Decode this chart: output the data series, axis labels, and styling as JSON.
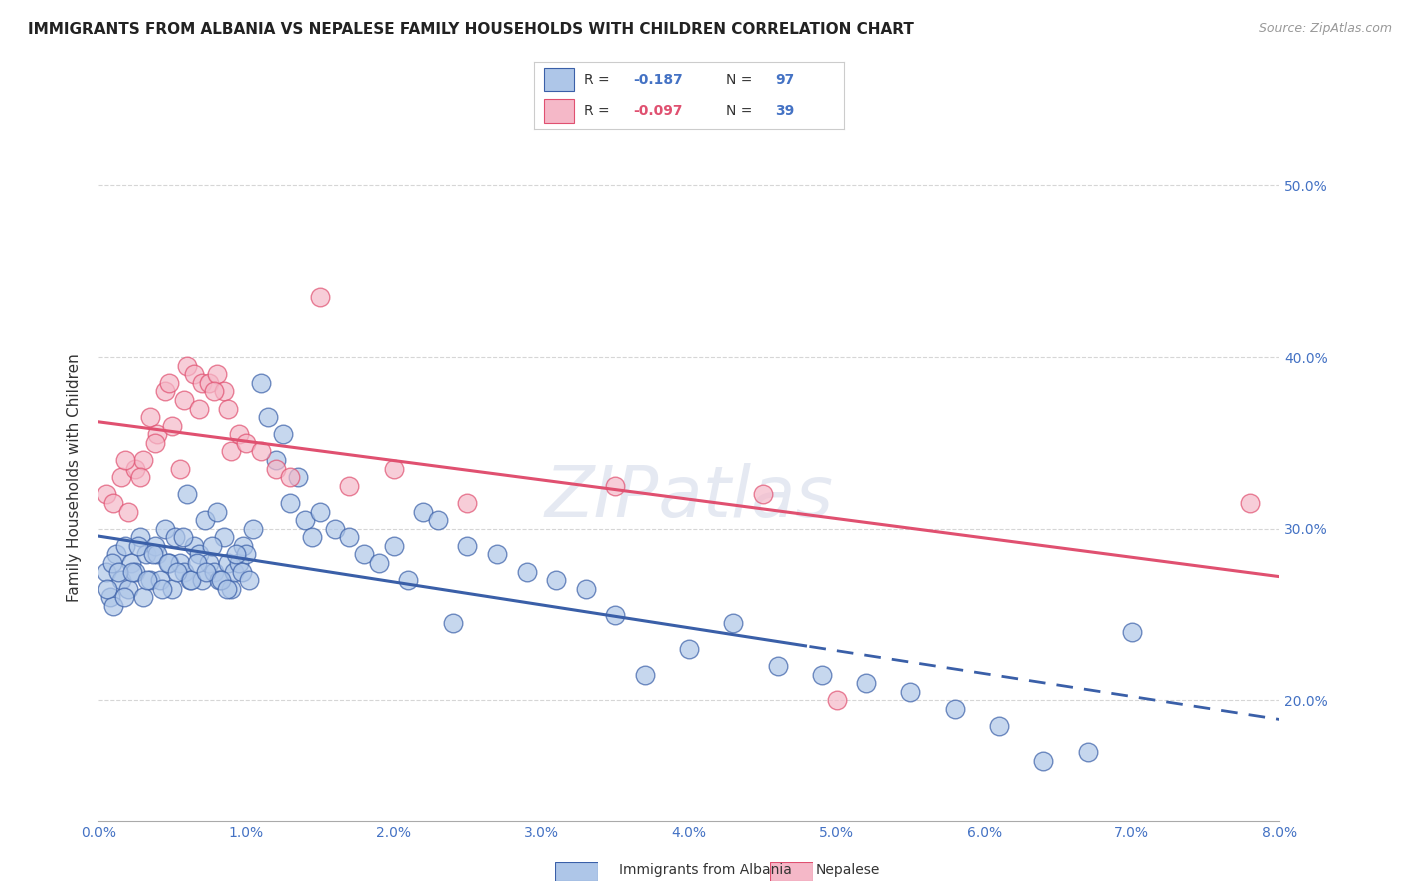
{
  "title": "IMMIGRANTS FROM ALBANIA VS NEPALESE FAMILY HOUSEHOLDS WITH CHILDREN CORRELATION CHART",
  "source": "Source: ZipAtlas.com",
  "ylabel": "Family Households with Children",
  "legend_label1": "Immigrants from Albania",
  "legend_label2": "Nepalese",
  "r1": -0.187,
  "n1": 97,
  "r2": -0.097,
  "n2": 39,
  "color1": "#aec6e8",
  "color2": "#f5b8c8",
  "trendline1_color": "#3a5fa8",
  "trendline2_color": "#e05070",
  "x_tick_labels": [
    "0.0%",
    "1.0%",
    "2.0%",
    "3.0%",
    "4.0%",
    "5.0%",
    "6.0%",
    "7.0%",
    "8.0%"
  ],
  "y_tick_labels": [
    "20.0%",
    "30.0%",
    "40.0%",
    "50.0%"
  ],
  "xlim": [
    0.0,
    8.0
  ],
  "ylim": [
    13.0,
    53.0
  ],
  "background_color": "#ffffff",
  "grid_color": "#cccccc",
  "trendline1_solid_end": 4.8,
  "scatter1_x": [
    0.05,
    0.08,
    0.1,
    0.12,
    0.15,
    0.18,
    0.2,
    0.22,
    0.25,
    0.28,
    0.3,
    0.32,
    0.35,
    0.38,
    0.4,
    0.42,
    0.45,
    0.48,
    0.5,
    0.52,
    0.55,
    0.58,
    0.6,
    0.62,
    0.65,
    0.68,
    0.7,
    0.72,
    0.75,
    0.78,
    0.8,
    0.82,
    0.85,
    0.88,
    0.9,
    0.92,
    0.95,
    0.98,
    1.0,
    1.05,
    1.1,
    1.15,
    1.2,
    1.25,
    1.3,
    1.35,
    1.4,
    1.45,
    1.5,
    1.6,
    1.7,
    1.8,
    1.9,
    2.0,
    2.1,
    2.2,
    2.3,
    2.4,
    2.5,
    2.7,
    2.9,
    3.1,
    3.3,
    3.5,
    3.7,
    4.0,
    4.3,
    4.6,
    4.9,
    5.2,
    5.5,
    5.8,
    6.1,
    6.4,
    6.7,
    7.0,
    0.06,
    0.09,
    0.13,
    0.17,
    0.23,
    0.27,
    0.33,
    0.37,
    0.43,
    0.47,
    0.53,
    0.57,
    0.63,
    0.67,
    0.73,
    0.77,
    0.83,
    0.87,
    0.93,
    0.97,
    1.02
  ],
  "scatter1_y": [
    27.5,
    26.0,
    25.5,
    28.5,
    27.0,
    29.0,
    26.5,
    28.0,
    27.5,
    29.5,
    26.0,
    28.5,
    27.0,
    29.0,
    28.5,
    27.0,
    30.0,
    28.0,
    26.5,
    29.5,
    28.0,
    27.5,
    32.0,
    27.0,
    29.0,
    28.5,
    27.0,
    30.5,
    28.0,
    27.5,
    31.0,
    27.0,
    29.5,
    28.0,
    26.5,
    27.5,
    28.0,
    29.0,
    28.5,
    30.0,
    38.5,
    36.5,
    34.0,
    35.5,
    31.5,
    33.0,
    30.5,
    29.5,
    31.0,
    30.0,
    29.5,
    28.5,
    28.0,
    29.0,
    27.0,
    31.0,
    30.5,
    24.5,
    29.0,
    28.5,
    27.5,
    27.0,
    26.5,
    25.0,
    21.5,
    23.0,
    24.5,
    22.0,
    21.5,
    21.0,
    20.5,
    19.5,
    18.5,
    16.5,
    17.0,
    24.0,
    26.5,
    28.0,
    27.5,
    26.0,
    27.5,
    29.0,
    27.0,
    28.5,
    26.5,
    28.0,
    27.5,
    29.5,
    27.0,
    28.0,
    27.5,
    29.0,
    27.0,
    26.5,
    28.5,
    27.5,
    27.0
  ],
  "scatter2_x": [
    0.05,
    0.1,
    0.15,
    0.2,
    0.25,
    0.3,
    0.35,
    0.4,
    0.45,
    0.5,
    0.55,
    0.6,
    0.65,
    0.7,
    0.75,
    0.8,
    0.85,
    0.9,
    0.95,
    1.0,
    1.1,
    1.2,
    1.3,
    1.5,
    1.7,
    2.0,
    2.5,
    3.5,
    4.5,
    5.0,
    7.8,
    0.18,
    0.28,
    0.38,
    0.48,
    0.58,
    0.68,
    0.78,
    0.88
  ],
  "scatter2_y": [
    32.0,
    31.5,
    33.0,
    31.0,
    33.5,
    34.0,
    36.5,
    35.5,
    38.0,
    36.0,
    33.5,
    39.5,
    39.0,
    38.5,
    38.5,
    39.0,
    38.0,
    34.5,
    35.5,
    35.0,
    34.5,
    33.5,
    33.0,
    43.5,
    32.5,
    33.5,
    31.5,
    32.5,
    32.0,
    20.0,
    31.5,
    34.0,
    33.0,
    35.0,
    38.5,
    37.5,
    37.0,
    38.0,
    37.0
  ],
  "watermark": "ZIPatlas"
}
